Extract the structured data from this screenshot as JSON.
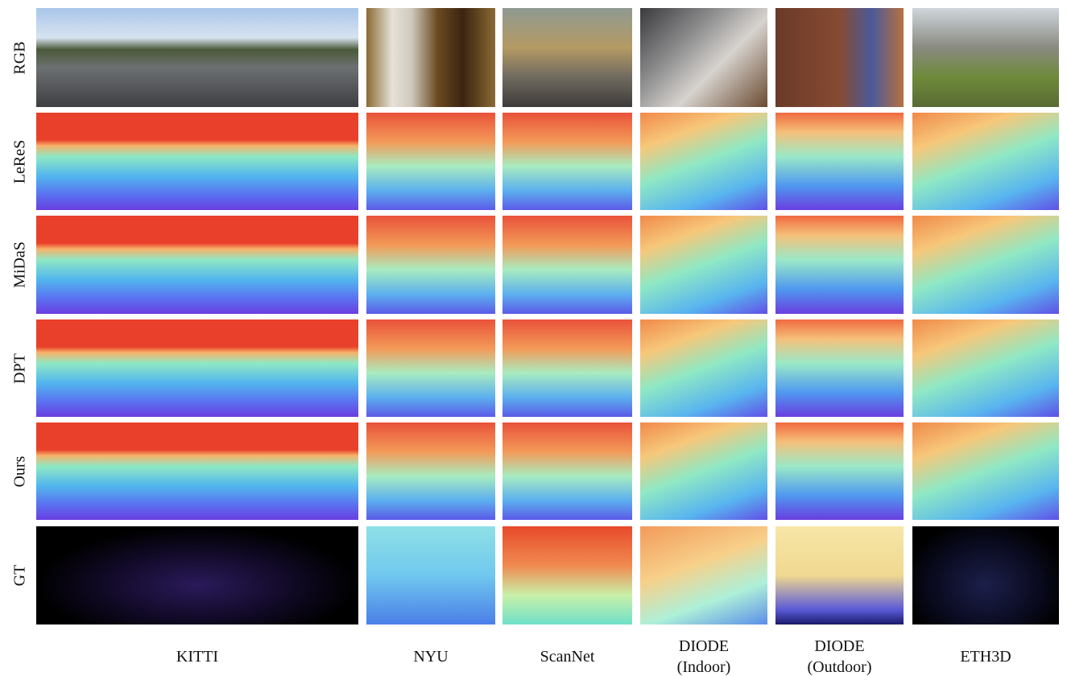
{
  "rows": [
    "RGB",
    "LeReS",
    "MiDaS",
    "DPT",
    "Ours",
    "GT"
  ],
  "columns": [
    [
      "KITTI"
    ],
    [
      "NYU"
    ],
    [
      "ScanNet"
    ],
    [
      "DIODE",
      "(Indoor)"
    ],
    [
      "DIODE",
      "(Outdoor)"
    ],
    [
      "ETH3D"
    ]
  ]
}
